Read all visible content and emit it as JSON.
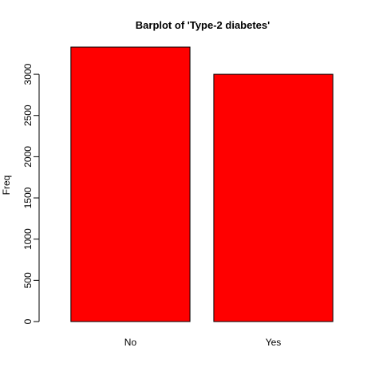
{
  "chart_data": {
    "type": "bar",
    "title": "Barplot of 'Type-2 diabetes'",
    "xlabel": "",
    "ylabel": "Freq",
    "categories": [
      "No",
      "Yes"
    ],
    "values": [
      3330,
      3000
    ],
    "ylim": [
      0,
      3330
    ],
    "yticks": [
      0,
      500,
      1000,
      1500,
      2000,
      2500,
      3000
    ],
    "bar_color": "#ff0000",
    "bar_border_color": "#000000",
    "grid": false,
    "legend": "none"
  }
}
